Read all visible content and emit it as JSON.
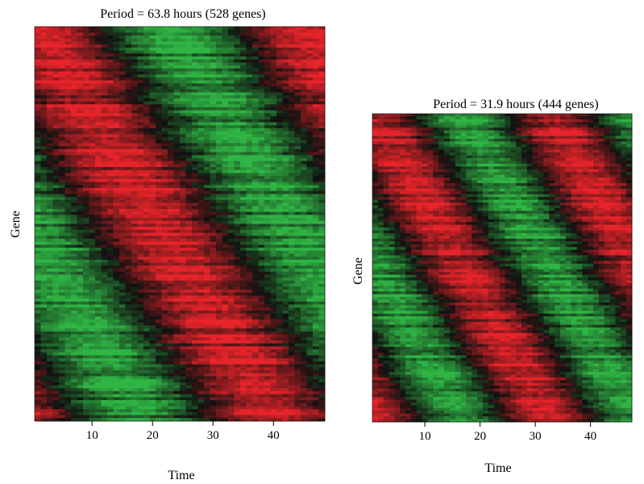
{
  "chart_data": [
    {
      "type": "heatmap",
      "title": "Period = 63.8 hours (528 genes)",
      "xlabel": "Time",
      "ylabel": "Gene",
      "xlim": [
        0.5,
        48.5
      ],
      "x_ticks": [
        10,
        20,
        30,
        40
      ],
      "x_tick_labels": [
        "10",
        "20",
        "30",
        "40"
      ],
      "period_hours": 63.8,
      "n_genes": 528,
      "colors": {
        "high": "#e8242a",
        "low": "#2fb544",
        "mid": "#111111"
      }
    },
    {
      "type": "heatmap",
      "title": "Period = 31.9 hours (444 genes)",
      "xlabel": "Time",
      "ylabel": "Gene",
      "xlim": [
        0.5,
        47.5
      ],
      "x_ticks": [
        10,
        20,
        30,
        40
      ],
      "x_tick_labels": [
        "10",
        "20",
        "30",
        "40"
      ],
      "period_hours": 31.9,
      "n_genes": 444,
      "colors": {
        "high": "#e8242a",
        "low": "#2fb544",
        "mid": "#111111"
      }
    }
  ]
}
